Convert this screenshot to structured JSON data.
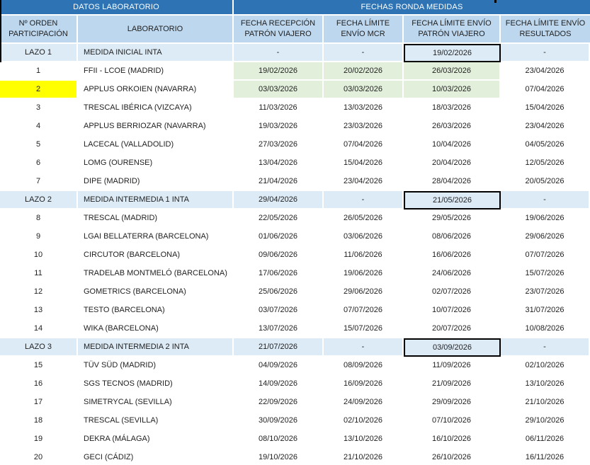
{
  "colors": {
    "band_blue": "#2E74B5",
    "header_blue": "#BDD7EE",
    "lazo_blue": "#DDEBF7",
    "green_highlight": "#E2EFDA",
    "yellow_highlight": "#FFFF00",
    "box_border": "#000000",
    "band_text": "#FFFFFF",
    "body_text": "#1F1F1F"
  },
  "chart_data": {
    "type": "table",
    "band_headers": {
      "left": "DATOS LABORATORIO",
      "right": "FECHAS RONDA MEDIDAS"
    },
    "columns": [
      {
        "id": "orden",
        "lines": [
          "Nº ORDEN",
          "PARTICIPACIÓN"
        ]
      },
      {
        "id": "laboratorio",
        "lines": [
          "LABORATORIO"
        ]
      },
      {
        "id": "recepcion",
        "lines": [
          "FECHA RECEPCIÓN",
          "PATRÓN VIAJERO"
        ]
      },
      {
        "id": "mcr",
        "lines": [
          "FECHA LÍMITE",
          "ENVÍO MCR"
        ]
      },
      {
        "id": "envio_patron",
        "lines": [
          "FECHA LÍMITE ENVÍO",
          "PATRÓN VIAJERO"
        ]
      },
      {
        "id": "resultados",
        "lines": [
          "FECHA LÍMITE ENVÍO",
          "RESULTADOS"
        ]
      }
    ],
    "rows": [
      {
        "type": "lazo",
        "order": "LAZO 1",
        "lab": "MEDIDA INICIAL INTA",
        "dates": [
          "-",
          "-",
          "19/02/2026",
          "-"
        ],
        "boxed_date": 2
      },
      {
        "type": "data",
        "order": "1",
        "lab": "FFII - LCOE (MADRID)",
        "dates": [
          "19/02/2026",
          "20/02/2026",
          "26/03/2026",
          "23/04/2026"
        ],
        "green": true
      },
      {
        "type": "data",
        "order": "2",
        "lab": "APPLUS ORKOIEN (NAVARRA)",
        "dates": [
          "03/03/2026",
          "03/03/2026",
          "10/03/2026",
          "07/04/2026"
        ],
        "green": true,
        "order_highlight": true
      },
      {
        "type": "data",
        "order": "3",
        "lab": "TRESCAL IBÉRICA (VIZCAYA)",
        "dates": [
          "11/03/2026",
          "13/03/2026",
          "18/03/2026",
          "15/04/2026"
        ]
      },
      {
        "type": "data",
        "order": "4",
        "lab": "APPLUS BERRIOZAR (NAVARRA)",
        "dates": [
          "19/03/2026",
          "23/03/2026",
          "26/03/2026",
          "23/04/2026"
        ]
      },
      {
        "type": "data",
        "order": "5",
        "lab": "LACECAL (VALLADOLID)",
        "dates": [
          "27/03/2026",
          "07/04/2026",
          "10/04/2026",
          "04/05/2026"
        ]
      },
      {
        "type": "data",
        "order": "6",
        "lab": "LOMG (OURENSE)",
        "dates": [
          "13/04/2026",
          "15/04/2026",
          "20/04/2026",
          "12/05/2026"
        ]
      },
      {
        "type": "data",
        "order": "7",
        "lab": "DIPE (MADRID)",
        "dates": [
          "21/04/2026",
          "23/04/2026",
          "28/04/2026",
          "20/05/2026"
        ]
      },
      {
        "type": "lazo",
        "order": "LAZO 2",
        "lab": "MEDIDA INTERMEDIA 1 INTA",
        "dates": [
          "29/04/2026",
          "-",
          "21/05/2026",
          "-"
        ],
        "boxed_date": 2
      },
      {
        "type": "data",
        "order": "8",
        "lab": "TRESCAL (MADRID)",
        "dates": [
          "22/05/2026",
          "26/05/2026",
          "29/05/2026",
          "19/06/2026"
        ]
      },
      {
        "type": "data",
        "order": "9",
        "lab": "LGAI BELLATERRA (BARCELONA)",
        "dates": [
          "01/06/2026",
          "03/06/2026",
          "08/06/2026",
          "29/06/2026"
        ]
      },
      {
        "type": "data",
        "order": "10",
        "lab": "CIRCUTOR (BARCELONA)",
        "dates": [
          "09/06/2026",
          "11/06/2026",
          "16/06/2026",
          "07/07/2026"
        ]
      },
      {
        "type": "data",
        "order": "11",
        "lab": "TRADELAB MONTMELÓ (BARCELONA)",
        "dates": [
          "17/06/2026",
          "19/06/2026",
          "24/06/2026",
          "15/07/2026"
        ]
      },
      {
        "type": "data",
        "order": "12",
        "lab": "GOMETRICS (BARCELONA)",
        "dates": [
          "25/06/2026",
          "29/06/2026",
          "02/07/2026",
          "23/07/2026"
        ]
      },
      {
        "type": "data",
        "order": "13",
        "lab": "TESTO (BARCELONA)",
        "dates": [
          "03/07/2026",
          "07/07/2026",
          "10/07/2026",
          "31/07/2026"
        ]
      },
      {
        "type": "data",
        "order": "14",
        "lab": "WIKA (BARCELONA)",
        "dates": [
          "13/07/2026",
          "15/07/2026",
          "20/07/2026",
          "10/08/2026"
        ]
      },
      {
        "type": "lazo",
        "order": "LAZO 3",
        "lab": "MEDIDA INTERMEDIA 2 INTA",
        "dates": [
          "21/07/2026",
          "-",
          "03/09/2026",
          "-"
        ],
        "boxed_date": 2
      },
      {
        "type": "data",
        "order": "15",
        "lab": "TÜV SÜD (MADRID)",
        "dates": [
          "04/09/2026",
          "08/09/2026",
          "11/09/2026",
          "02/10/2026"
        ]
      },
      {
        "type": "data",
        "order": "16",
        "lab": "SGS TECNOS (MADRID)",
        "dates": [
          "14/09/2026",
          "16/09/2026",
          "21/09/2026",
          "13/10/2026"
        ]
      },
      {
        "type": "data",
        "order": "17",
        "lab": "SIMETRYCAL (SEVILLA)",
        "dates": [
          "22/09/2026",
          "24/09/2026",
          "29/09/2026",
          "21/10/2026"
        ]
      },
      {
        "type": "data",
        "order": "18",
        "lab": "TRESCAL (SEVILLA)",
        "dates": [
          "30/09/2026",
          "02/10/2026",
          "07/10/2026",
          "29/10/2026"
        ]
      },
      {
        "type": "data",
        "order": "19",
        "lab": "DEKRA (MÁLAGA)",
        "dates": [
          "08/10/2026",
          "13/10/2026",
          "16/10/2026",
          "06/11/2026"
        ]
      },
      {
        "type": "data",
        "order": "20",
        "lab": "GECI (CÁDIZ)",
        "dates": [
          "19/10/2026",
          "21/10/2026",
          "26/10/2026",
          "16/11/2026"
        ]
      }
    ]
  }
}
